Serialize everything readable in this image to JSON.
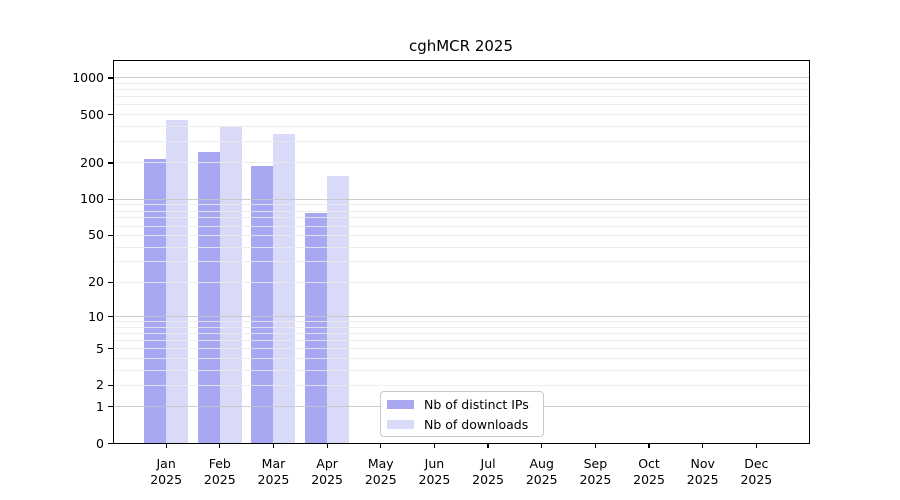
{
  "chart_data": {
    "type": "bar",
    "title": "cghMCR 2025",
    "categories": [
      "Jan",
      "Feb",
      "Mar",
      "Apr",
      "May",
      "Jun",
      "Jul",
      "Aug",
      "Sep",
      "Oct",
      "Nov",
      "Dec"
    ],
    "year_label": "2025",
    "series": [
      {
        "name": "Nb of distinct IPs",
        "color": "#a8a8f2",
        "values": [
          215,
          245,
          190,
          77,
          null,
          null,
          null,
          null,
          null,
          null,
          null,
          null
        ]
      },
      {
        "name": "Nb of downloads",
        "color": "#d9d9f8",
        "values": [
          450,
          405,
          345,
          156,
          null,
          null,
          null,
          null,
          null,
          null,
          null,
          null
        ]
      }
    ],
    "y_axis": {
      "scale": "log10(value+1)",
      "ticks": [
        0,
        1,
        2,
        5,
        10,
        20,
        50,
        100,
        200,
        500,
        1000
      ],
      "top_value": 1405,
      "minor_gridlines": [
        2,
        3,
        4,
        5,
        6,
        7,
        8,
        9,
        20,
        30,
        40,
        50,
        60,
        70,
        80,
        90,
        200,
        300,
        400,
        500,
        600,
        700,
        800,
        900
      ],
      "major_gridlines": [
        1,
        10,
        100,
        1000
      ]
    },
    "legend_position": "lower center",
    "grid": "on"
  },
  "colors": {
    "grid_minor": "#eaeaea",
    "grid_major": "#c6c6c6",
    "axis_frame": "#000000",
    "background": "#ffffff"
  }
}
